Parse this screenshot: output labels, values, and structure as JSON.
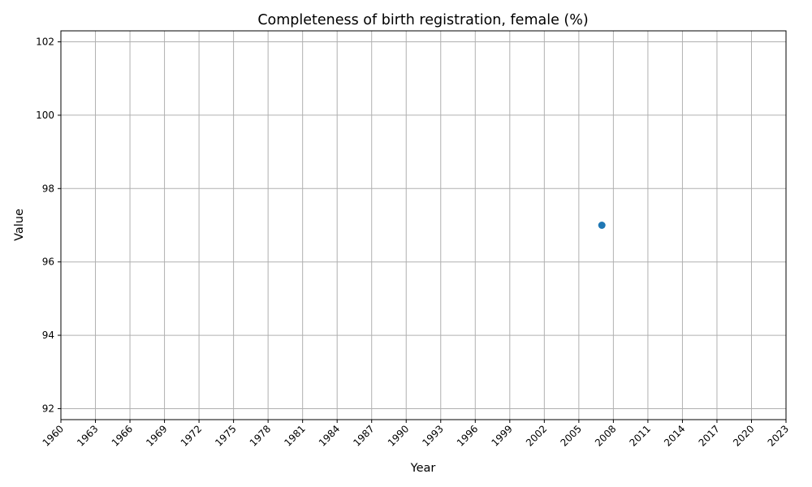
{
  "chart_data": {
    "type": "scatter",
    "title": "Completeness of birth registration, female (%)",
    "xlabel": "Year",
    "ylabel": "Value",
    "xlim": [
      1960,
      2023
    ],
    "ylim": [
      91.7,
      102.3
    ],
    "xticks": [
      1960,
      1963,
      1966,
      1969,
      1972,
      1975,
      1978,
      1981,
      1984,
      1987,
      1990,
      1993,
      1996,
      1999,
      2002,
      2005,
      2008,
      2011,
      2014,
      2017,
      2020,
      2023
    ],
    "yticks": [
      92,
      94,
      96,
      98,
      100,
      102
    ],
    "grid": true,
    "series": [
      {
        "color": "#1f77b4",
        "points": [
          {
            "x": 2007,
            "y": 97
          }
        ]
      }
    ]
  }
}
